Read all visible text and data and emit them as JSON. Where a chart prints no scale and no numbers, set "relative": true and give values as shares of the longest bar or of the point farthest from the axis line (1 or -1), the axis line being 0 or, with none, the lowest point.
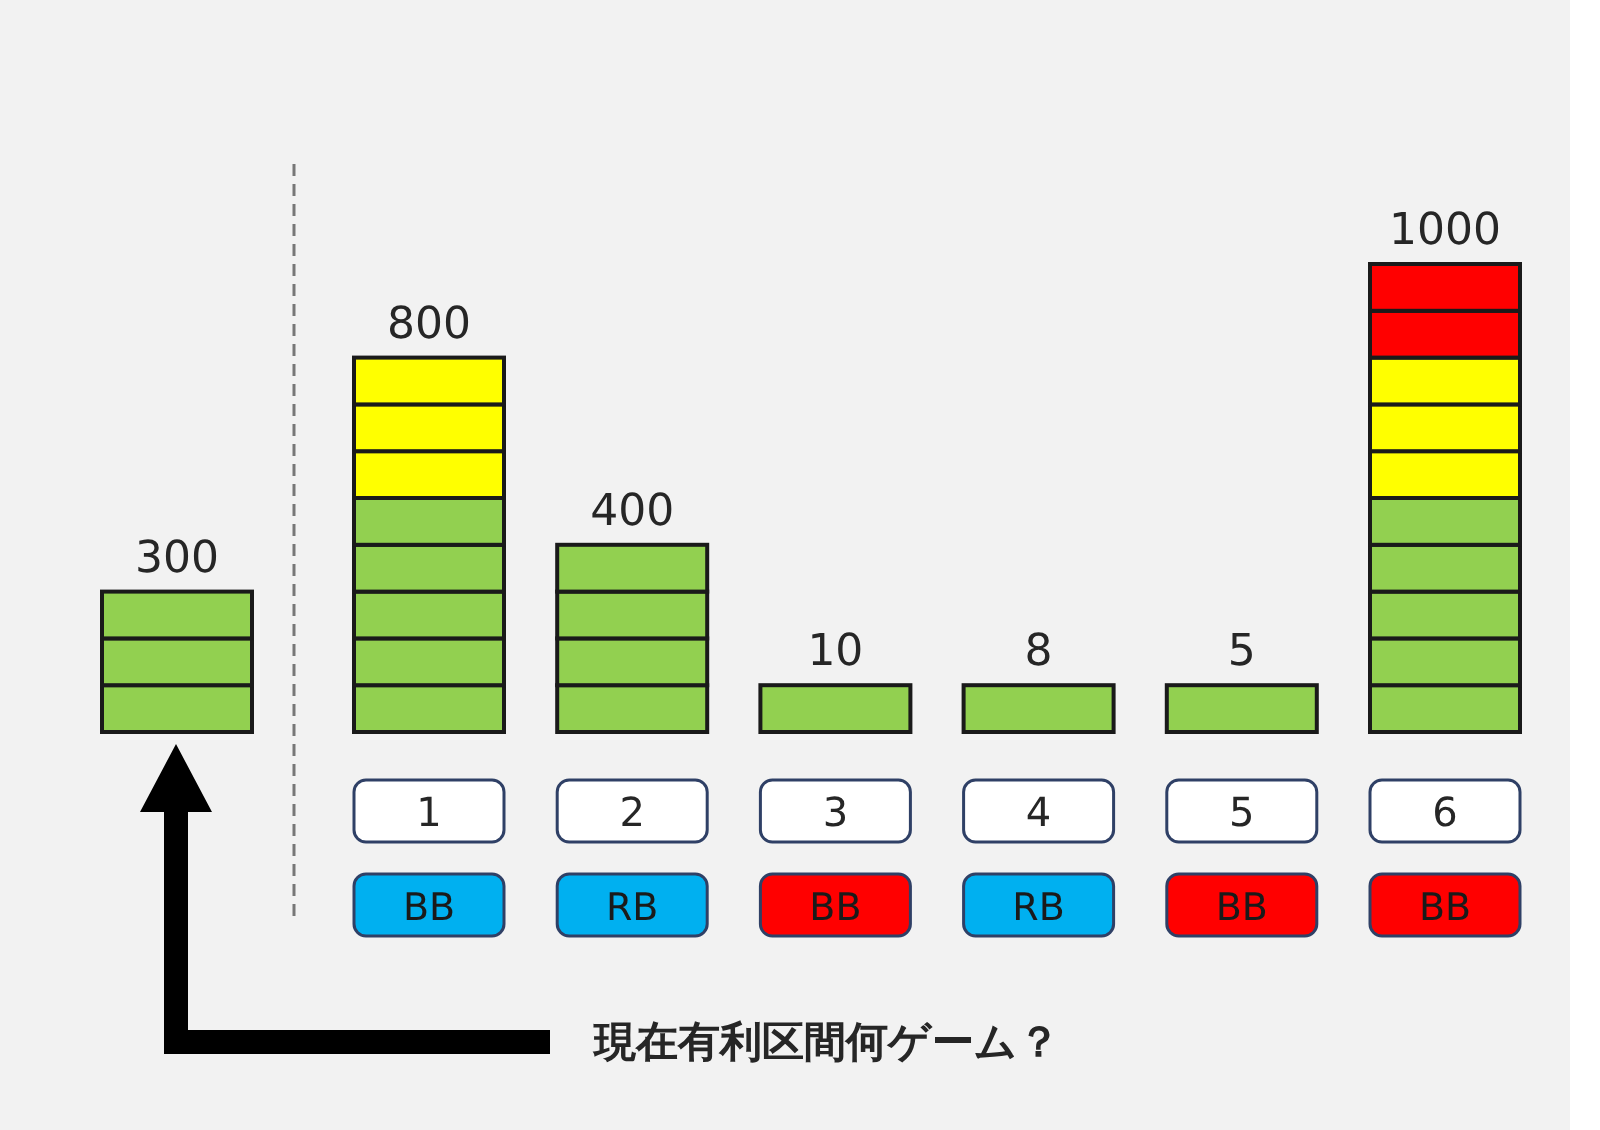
{
  "chart_data": {
    "type": "bar",
    "stacked": true,
    "relative": true,
    "categories": [
      null,
      "1",
      "2",
      "3",
      "4",
      "5",
      "6"
    ],
    "series": [
      {
        "color": "#92d050",
        "values": [
          0.1,
          0.1,
          0.1,
          0.1,
          0.1,
          0.1,
          0.1
        ]
      },
      {
        "color": "#92d050",
        "values": [
          0.1,
          0.1,
          0.1,
          null,
          null,
          null,
          0.1
        ]
      },
      {
        "color": "#92d050",
        "values": [
          0.1,
          0.1,
          0.1,
          null,
          null,
          null,
          0.1
        ]
      },
      {
        "color": "#92d050",
        "values": [
          null,
          0.1,
          0.1,
          null,
          null,
          null,
          0.1
        ]
      },
      {
        "color": "#92d050",
        "values": [
          null,
          0.1,
          null,
          null,
          null,
          null,
          0.1
        ]
      },
      {
        "color": "#ffff00",
        "values": [
          null,
          0.1,
          null,
          null,
          null,
          null,
          0.1
        ]
      },
      {
        "color": "#ffff00",
        "values": [
          null,
          0.1,
          null,
          null,
          null,
          null,
          0.1
        ]
      },
      {
        "color": "#ffff00",
        "values": [
          null,
          0.1,
          null,
          null,
          null,
          null,
          0.1
        ]
      },
      {
        "color": "#ff0000",
        "values": [
          null,
          null,
          null,
          null,
          null,
          null,
          0.1
        ]
      },
      {
        "color": "#ff0000",
        "values": [
          null,
          null,
          null,
          null,
          null,
          null,
          0.1
        ]
      }
    ],
    "totals": [
      "300",
      "800",
      "400",
      "10",
      "8",
      "5",
      "1000"
    ],
    "annotations": [
      "BB",
      "RB",
      "BB",
      "RB",
      "BB",
      "BB",
      "現在有利区間何ゲーム？"
    ]
  }
}
